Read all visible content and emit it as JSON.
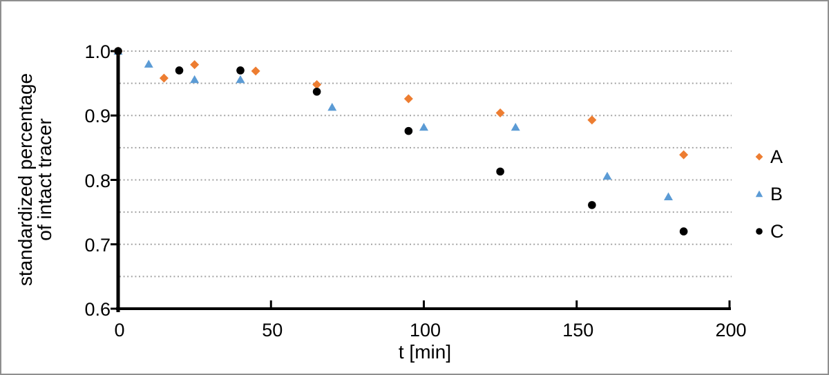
{
  "figure": {
    "background": "#ffffff",
    "frame_color": "#8f8f8f"
  },
  "chart_data": {
    "type": "scatter",
    "title": "",
    "xlabel": "t [min]",
    "ylabel_line1": "standardized percentage",
    "ylabel_line2": "of intact tracer",
    "xlim": [
      0,
      200
    ],
    "ylim": [
      0.6,
      1.0
    ],
    "xticks": [
      0,
      50,
      100,
      150,
      200
    ],
    "xtick_labels": [
      "0",
      "50",
      "100",
      "150",
      "200"
    ],
    "yticks": [
      1.0,
      0.9,
      0.8,
      0.7,
      0.6
    ],
    "ytick_labels": [
      "1.0",
      "0.9",
      "0.8",
      "0.7",
      "0.6"
    ],
    "grid": {
      "values": [
        1.0,
        0.95,
        0.9,
        0.85,
        0.8,
        0.75,
        0.7,
        0.65
      ],
      "style": "dotted",
      "color": "#a3a3a3"
    },
    "axis_color": "#000000",
    "legend_position": "right",
    "series": [
      {
        "name": "A",
        "marker": "diamond",
        "color": "#ED7D31",
        "points": [
          [
            0,
            1.0
          ],
          [
            15,
            0.958
          ],
          [
            25,
            0.979
          ],
          [
            45,
            0.969
          ],
          [
            65,
            0.948
          ],
          [
            95,
            0.926
          ],
          [
            125,
            0.904
          ],
          [
            155,
            0.893
          ],
          [
            185,
            0.839
          ]
        ]
      },
      {
        "name": "B",
        "marker": "triangle",
        "color": "#5B9BD5",
        "points": [
          [
            0,
            1.0
          ],
          [
            10,
            0.98
          ],
          [
            25,
            0.956
          ],
          [
            40,
            0.956
          ],
          [
            70,
            0.913
          ],
          [
            100,
            0.882
          ],
          [
            130,
            0.882
          ],
          [
            160,
            0.806
          ],
          [
            180,
            0.774
          ]
        ]
      },
      {
        "name": "C",
        "marker": "circle",
        "color": "#000000",
        "points": [
          [
            0,
            1.0
          ],
          [
            20,
            0.97
          ],
          [
            40,
            0.97
          ],
          [
            65,
            0.937
          ],
          [
            95,
            0.876
          ],
          [
            125,
            0.813
          ],
          [
            155,
            0.761
          ],
          [
            185,
            0.72
          ]
        ]
      }
    ]
  }
}
